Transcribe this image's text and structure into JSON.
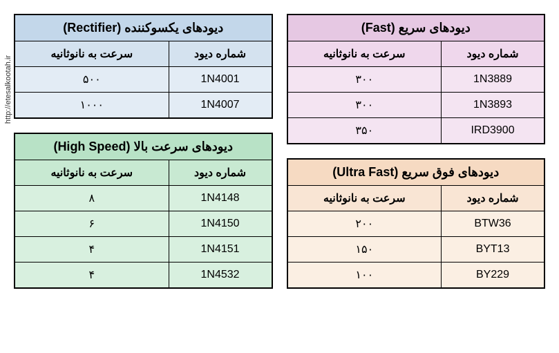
{
  "watermark": "http://etesalkootah.ir",
  "tables": {
    "fast": {
      "title": "دیودهای سریع (Fast)",
      "col_speed": "سرعت به نانوثانیه",
      "col_diode": "شماره دیود",
      "rows": [
        {
          "speed": "۳۰۰",
          "diode": "1N3889"
        },
        {
          "speed": "۳۰۰",
          "diode": "1N3893"
        },
        {
          "speed": "۳۵۰",
          "diode": "IRD3900"
        }
      ],
      "bg_title": "#e6c8e3",
      "bg_head": "#efd7ec",
      "bg_cell": "#f4e4f2",
      "border": "#000000"
    },
    "rectifier": {
      "title": "دیودهای یکسوکننده (Rectifier)",
      "col_speed": "سرعت به نانوثانیه",
      "col_diode": "شماره دیود",
      "rows": [
        {
          "speed": "۵۰۰",
          "diode": "1N4001"
        },
        {
          "speed": "۱۰۰۰",
          "diode": "1N4007"
        }
      ],
      "bg_title": "#c3d7ea",
      "bg_head": "#d4e2ef",
      "bg_cell": "#e3ecf5",
      "border": "#000000"
    },
    "ultrafast": {
      "title": "دیودهای فوق سریع (Ultra Fast)",
      "col_speed": "سرعت به نانوثانیه",
      "col_diode": "شماره دیود",
      "rows": [
        {
          "speed": "۲۰۰",
          "diode": "BTW36"
        },
        {
          "speed": "۱۵۰",
          "diode": "BYT13"
        },
        {
          "speed": "۱۰۰",
          "diode": "BY229"
        }
      ],
      "bg_title": "#f6dac2",
      "bg_head": "#f9e5d4",
      "bg_cell": "#fbefe3",
      "border": "#000000"
    },
    "highspeed": {
      "title": "دیودهای سرعت بالا (High Speed)",
      "col_speed": "سرعت به نانوثانیه",
      "col_diode": "شماره دیود",
      "rows": [
        {
          "speed": "۸",
          "diode": "1N4148"
        },
        {
          "speed": "۶",
          "diode": "1N4150"
        },
        {
          "speed": "۴",
          "diode": "1N4151"
        },
        {
          "speed": "۴",
          "diode": "1N4532"
        }
      ],
      "bg_title": "#b8e2c6",
      "bg_head": "#c8e9d2",
      "bg_cell": "#d8f0df",
      "border": "#000000"
    }
  },
  "style": {
    "title_fontsize": 18,
    "head_fontsize": 16,
    "cell_fontsize": 16,
    "border_width": 2,
    "background": "#ffffff"
  }
}
